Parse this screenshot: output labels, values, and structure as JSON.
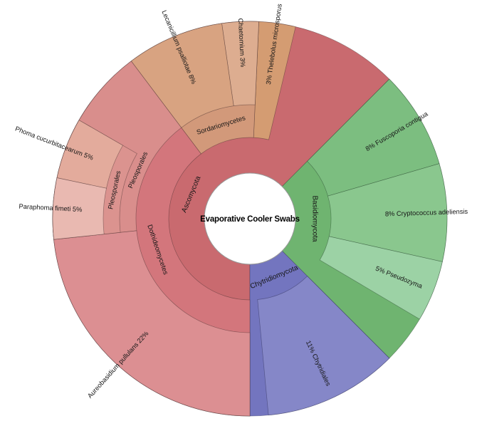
{
  "chart_data": {
    "type": "sunburst",
    "title": "Evaporative Cooler Swabs",
    "center_label": "Evaporative Cooler Swabs",
    "legend_position": "none",
    "rings": [
      "phylum",
      "class",
      "order",
      "suborder",
      "species"
    ],
    "wedges": [
      {
        "id": "ascomycota",
        "name": "Ascomycota",
        "parent": "root",
        "depth": 0,
        "percent": 62.5,
        "percent_label": "",
        "start_deg": 45,
        "end_deg": 270,
        "color": "#c96a6f",
        "label_text": "Ascomycota",
        "label_kind": "arc",
        "label_r": 89,
        "color_class": "red"
      },
      {
        "id": "basidiomycota",
        "name": "Basidiomycota",
        "parent": "root",
        "depth": 0,
        "percent": 25,
        "percent_label": "",
        "start_deg": -45,
        "end_deg": 45,
        "color": "#6fb470",
        "label_text": "Basidiomycota",
        "label_kind": "arc",
        "label_r": 91,
        "color_class": "green"
      },
      {
        "id": "chytridiomycota",
        "name": "Chytridiomycota",
        "parent": "root",
        "depth": 0,
        "percent": 12.5,
        "percent_label": "",
        "start_deg": -90,
        "end_deg": -45,
        "color": "#7375bf",
        "label_text": "Chytridiomycota",
        "label_kind": "arc",
        "label_r": 89,
        "color_class": "blue"
      },
      {
        "id": "thelebolus-microsporus",
        "name": "Thelebolus microsporus",
        "parent": "Ascomycota",
        "depth": 1,
        "percent": 3,
        "percent_label": "3%",
        "start_deg": 76.6,
        "end_deg": 87.4,
        "color": "#d49c72",
        "label_text": "3%  Thelebolus microsporus",
        "label_kind": "radial",
        "label_r": 190,
        "color_class": "red"
      },
      {
        "id": "sordariomycetes",
        "name": "Sordariomycetes",
        "parent": "Ascomycota",
        "depth": 1,
        "percent": 11,
        "percent_label": "",
        "start_deg": 87.4,
        "end_deg": 127,
        "color": "#d2997a",
        "label_text": "Sordariomycetes",
        "label_kind": "arc",
        "label_r": 137,
        "color_class": "red",
        "label_small": true
      },
      {
        "id": "dothideomycetes",
        "name": "Dothideomycetes",
        "parent": "Ascomycota",
        "depth": 1,
        "percent": 39.7,
        "percent_label": "",
        "start_deg": 127,
        "end_deg": 270,
        "color": "#d3767c",
        "label_text": "Dothideomycetes",
        "label_kind": "arc",
        "label_r": 137,
        "color_class": "red",
        "label_small": true
      },
      {
        "id": "fuscoporia-contigua",
        "name": "Fuscoporia contigua",
        "parent": "Basidiomycota",
        "depth": 1,
        "percent": 8,
        "percent_label": "8%",
        "start_deg": 16.2,
        "end_deg": 45,
        "color": "#7cbe80",
        "label_text": "8%  Fuscoporia contigua",
        "label_kind": "radial",
        "label_r": 190,
        "color_class": "green"
      },
      {
        "id": "cryptococcus-adeliensis",
        "name": "Cryptococcus adeliensis",
        "parent": "Basidiomycota",
        "depth": 1,
        "percent": 8,
        "percent_label": "8%",
        "start_deg": -12.6,
        "end_deg": 16.2,
        "color": "#8ac78e",
        "label_text": "8%  Cryptococcus adeliensis",
        "label_kind": "radial",
        "label_r": 190,
        "color_class": "green"
      },
      {
        "id": "pseudozyma",
        "name": "Pseudozyma",
        "parent": "Basidiomycota",
        "depth": 1,
        "percent": 5,
        "percent_label": "5%",
        "start_deg": -30.6,
        "end_deg": -12.6,
        "color": "#9cd2a5",
        "label_text": "5%  Pseudozyma",
        "label_kind": "radial",
        "label_r": 190,
        "color_class": "green"
      },
      {
        "id": "chytridiales",
        "name": "Chytridiales",
        "parent": "Chytridiomycota",
        "depth": 1,
        "percent": 11,
        "percent_label": "11%",
        "start_deg": -84.6,
        "end_deg": -45,
        "color": "#8587c8",
        "label_text": "11%  Chytridiales",
        "label_kind": "radial",
        "label_r": 190,
        "color_class": "blue"
      },
      {
        "id": "chaetomium",
        "name": "Chaetomium",
        "parent": "Sordariomycetes",
        "depth": 2,
        "percent": 3,
        "percent_label": "3%",
        "start_deg": 87.4,
        "end_deg": 98.2,
        "color": "#ddad90",
        "label_text": "Chaetomium  3%",
        "label_kind": "radial",
        "label_r": 213,
        "color_class": "red"
      },
      {
        "id": "lecanicillium-psalliotae",
        "name": "Lecanicillium psalliotae",
        "parent": "Sordariomycetes",
        "depth": 2,
        "percent": 8,
        "percent_label": "8%",
        "start_deg": 98.2,
        "end_deg": 127,
        "color": "#d8a381",
        "label_text": "Lecanicillium psalliotae  8%",
        "label_kind": "radial",
        "label_r": 205,
        "color_class": "red"
      },
      {
        "id": "pleosporales-order",
        "name": "Pleosporales",
        "parent": "Dothideomycetes",
        "depth": 2,
        "percent": 16.4,
        "percent_label": "",
        "start_deg": 127,
        "end_deg": 186.04,
        "color": "#d98e8c",
        "label_text": "Pleosporales",
        "label_kind": "arc",
        "label_r": 171,
        "color_class": "red",
        "label_small": true
      },
      {
        "id": "aureobasidium-pullulans",
        "name": "Aureobasidium pullulans",
        "parent": "Dothideomycetes",
        "depth": 2,
        "percent": 22,
        "percent_label": "22%",
        "start_deg": 186.04,
        "end_deg": 270,
        "color": "#dc8f92",
        "label_text": "Aureobasidium pullulans  22%",
        "label_kind": "radial",
        "label_r": 215,
        "color_class": "red"
      },
      {
        "id": "pleosporales-sub",
        "name": "Pleosporales",
        "parent": "Pleosporales",
        "depth": 3,
        "percent": 10,
        "percent_label": "",
        "start_deg": 150.04,
        "end_deg": 186.04,
        "color": "#db938f",
        "label_text": "Pleosporales",
        "label_kind": "arc",
        "label_r": 194,
        "color_class": "red",
        "label_small": true
      },
      {
        "id": "phoma-cucurbitacearum",
        "name": "Phoma cucurbitacearum",
        "parent": "Pleosporales",
        "depth": 4,
        "percent": 5,
        "percent_label": "5%",
        "start_deg": 150.04,
        "end_deg": 168.04,
        "color": "#e3ab9c",
        "label_text": "Phoma cucurbitacearum  5%",
        "label_kind": "radial",
        "label_r": 236,
        "color_class": "red"
      },
      {
        "id": "paraphoma-fimeti",
        "name": "Paraphoma fimeti",
        "parent": "Pleosporales",
        "depth": 4,
        "percent": 5,
        "percent_label": "5%",
        "start_deg": 168.04,
        "end_deg": 186.04,
        "color": "#e9b9b1",
        "label_text": "Paraphoma fimeti  5%",
        "label_kind": "radial",
        "label_r": 236,
        "color_class": "red"
      }
    ]
  }
}
